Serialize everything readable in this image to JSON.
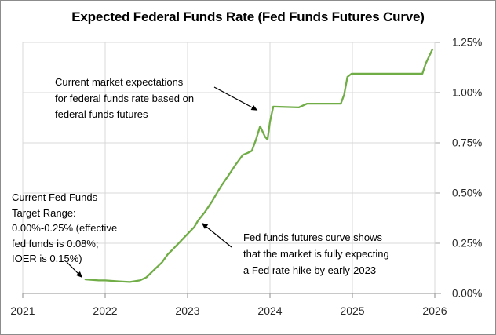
{
  "chart_data": {
    "type": "line",
    "title": "Expected Federal Funds Rate (Fed Funds Futures Curve)",
    "xlabel": "",
    "ylabel": "",
    "xlim": [
      2021,
      2026
    ],
    "ylim": [
      0,
      1.25
    ],
    "grid": true,
    "legend": "none",
    "x_ticks": [
      "2021",
      "2022",
      "2023",
      "2024",
      "2025",
      "2026"
    ],
    "y_ticks": [
      "0.00%",
      "0.25%",
      "0.50%",
      "0.75%",
      "1.00%",
      "1.25%"
    ],
    "y_tick_values": [
      0,
      0.25,
      0.5,
      0.75,
      1.0,
      1.25
    ],
    "series": [
      {
        "name": "Fed funds futures curve",
        "color": "#70ad47",
        "points": [
          [
            2021.76,
            0.07
          ],
          [
            2021.92,
            0.065
          ],
          [
            2022.0,
            0.065
          ],
          [
            2022.17,
            0.06
          ],
          [
            2022.3,
            0.057
          ],
          [
            2022.42,
            0.065
          ],
          [
            2022.5,
            0.08
          ],
          [
            2022.6,
            0.12
          ],
          [
            2022.69,
            0.155
          ],
          [
            2022.76,
            0.195
          ],
          [
            2022.81,
            0.215
          ],
          [
            2022.88,
            0.245
          ],
          [
            2022.95,
            0.275
          ],
          [
            2023.02,
            0.305
          ],
          [
            2023.08,
            0.33
          ],
          [
            2023.13,
            0.365
          ],
          [
            2023.21,
            0.405
          ],
          [
            2023.3,
            0.46
          ],
          [
            2023.4,
            0.53
          ],
          [
            2023.5,
            0.59
          ],
          [
            2023.59,
            0.645
          ],
          [
            2023.67,
            0.69
          ],
          [
            2023.73,
            0.7
          ],
          [
            2023.78,
            0.71
          ],
          [
            2023.83,
            0.765
          ],
          [
            2023.88,
            0.832
          ],
          [
            2023.94,
            0.78
          ],
          [
            2023.97,
            0.766
          ],
          [
            2024.0,
            0.855
          ],
          [
            2024.04,
            0.93
          ],
          [
            2024.35,
            0.926
          ],
          [
            2024.45,
            0.945
          ],
          [
            2024.86,
            0.945
          ],
          [
            2024.9,
            0.99
          ],
          [
            2024.94,
            1.078
          ],
          [
            2024.99,
            1.094
          ],
          [
            2025.85,
            1.094
          ],
          [
            2025.89,
            1.145
          ],
          [
            2025.97,
            1.215
          ]
        ]
      }
    ]
  },
  "annotations": {
    "market_expectations": {
      "lines": [
        "Current market expectations",
        "for federal funds rate based on",
        "federal funds futures"
      ]
    },
    "target_range": {
      "lines": [
        "Current Fed Funds",
        "Target Range:",
        "0.00%-0.25% (effective",
        "fed funds is 0.08%;",
        "IOER is 0.15%)"
      ]
    },
    "rate_hike": {
      "lines": [
        "Fed funds futures curve shows",
        "that the market is fully expecting",
        "a Fed rate hike by early-2023"
      ]
    }
  },
  "colors": {
    "line": "#70ad47",
    "gridline": "#d9d9d9",
    "axis": "#a6a6a6",
    "axis_label": "#262626",
    "annotation_text": "#000000",
    "arrow": "#000000",
    "border": "#8c8c8c",
    "background": "#ffffff"
  }
}
